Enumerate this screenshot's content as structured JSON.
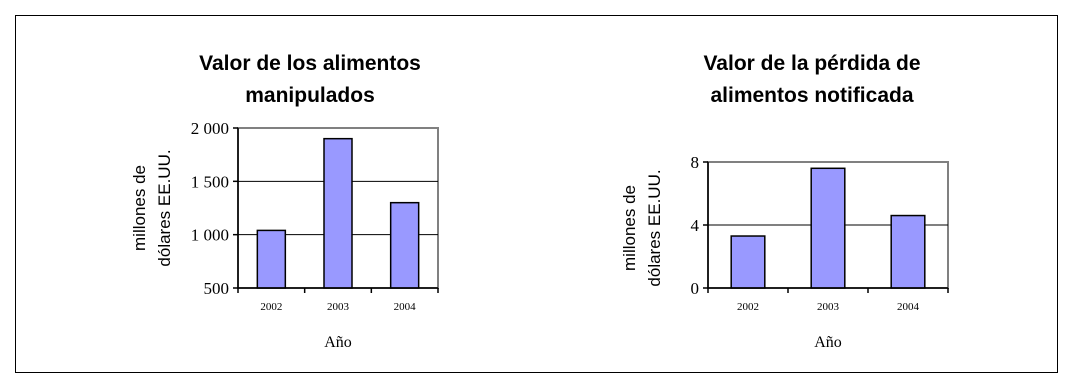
{
  "colors": {
    "bar": "#9999ff",
    "bar_stroke": "#000000",
    "grid": "#000000",
    "plot_border": "#808080"
  },
  "chart_data": [
    {
      "type": "bar",
      "title_lines": [
        "Valor de los alimentos",
        "manipulados"
      ],
      "ylabel_lines": [
        "millones de",
        "dólares EE.UU."
      ],
      "xlabel": "Año",
      "categories": [
        "2002",
        "2003",
        "2004"
      ],
      "values": [
        1040,
        1900,
        1300
      ],
      "ylim": [
        500,
        2000
      ],
      "yticks": [
        500,
        1000,
        1500,
        2000
      ],
      "ytick_labels": [
        "500",
        "1 000",
        "1 500",
        "2 000"
      ],
      "grid": true
    },
    {
      "type": "bar",
      "title_lines": [
        "Valor de la pérdida de",
        "alimentos notificada"
      ],
      "ylabel_lines": [
        "millones de",
        "dólares EE.UU."
      ],
      "xlabel": "Año",
      "categories": [
        "2002",
        "2003",
        "2004"
      ],
      "values": [
        3.3,
        7.6,
        4.6
      ],
      "ylim": [
        0,
        8
      ],
      "yticks": [
        0,
        4,
        8
      ],
      "ytick_labels": [
        "0",
        "4",
        "8"
      ],
      "grid": true
    }
  ]
}
